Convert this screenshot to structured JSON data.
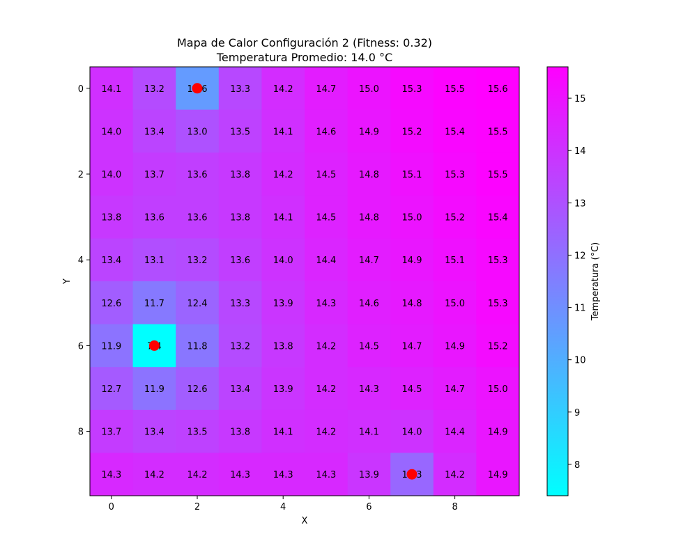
{
  "chart_data": {
    "type": "heatmap",
    "title_lines": [
      "Mapa de Calor Configuración 2 (Fitness: 0.32)",
      "Temperatura Promedio: 14.0 °C"
    ],
    "xlabel": "X",
    "ylabel": "Y",
    "colorbar_label": "Temperatura (°C)",
    "x_ticks": [
      "0",
      "2",
      "4",
      "6",
      "8"
    ],
    "y_ticks": [
      "0",
      "2",
      "4",
      "6",
      "8"
    ],
    "colorbar_ticks": [
      "8",
      "9",
      "10",
      "11",
      "12",
      "13",
      "14",
      "15"
    ],
    "vmin": 7.4,
    "vmax": 15.6,
    "colormap": [
      "#00ffff",
      "#ff00ff"
    ],
    "values": [
      [
        14.1,
        13.2,
        10.6,
        13.3,
        14.2,
        14.7,
        15.0,
        15.3,
        15.5,
        15.6
      ],
      [
        14.0,
        13.4,
        13.0,
        13.5,
        14.1,
        14.6,
        14.9,
        15.2,
        15.4,
        15.5
      ],
      [
        14.0,
        13.7,
        13.6,
        13.8,
        14.2,
        14.5,
        14.8,
        15.1,
        15.3,
        15.5
      ],
      [
        13.8,
        13.6,
        13.6,
        13.8,
        14.1,
        14.5,
        14.8,
        15.0,
        15.2,
        15.4
      ],
      [
        13.4,
        13.1,
        13.2,
        13.6,
        14.0,
        14.4,
        14.7,
        14.9,
        15.1,
        15.3
      ],
      [
        12.6,
        11.7,
        12.4,
        13.3,
        13.9,
        14.3,
        14.6,
        14.8,
        15.0,
        15.3
      ],
      [
        11.9,
        7.4,
        11.8,
        13.2,
        13.8,
        14.2,
        14.5,
        14.7,
        14.9,
        15.2
      ],
      [
        12.7,
        11.9,
        12.6,
        13.4,
        13.9,
        14.2,
        14.3,
        14.5,
        14.7,
        15.0
      ],
      [
        13.7,
        13.4,
        13.5,
        13.8,
        14.1,
        14.2,
        14.1,
        14.0,
        14.4,
        14.9
      ],
      [
        14.3,
        14.2,
        14.2,
        14.3,
        14.3,
        14.3,
        13.9,
        12.3,
        14.2,
        14.9
      ]
    ],
    "markers": [
      {
        "x": 2,
        "y": 0,
        "color": "#ff0000"
      },
      {
        "x": 1,
        "y": 6,
        "color": "#ff0000"
      },
      {
        "x": 7,
        "y": 9,
        "color": "#ff0000"
      }
    ]
  }
}
